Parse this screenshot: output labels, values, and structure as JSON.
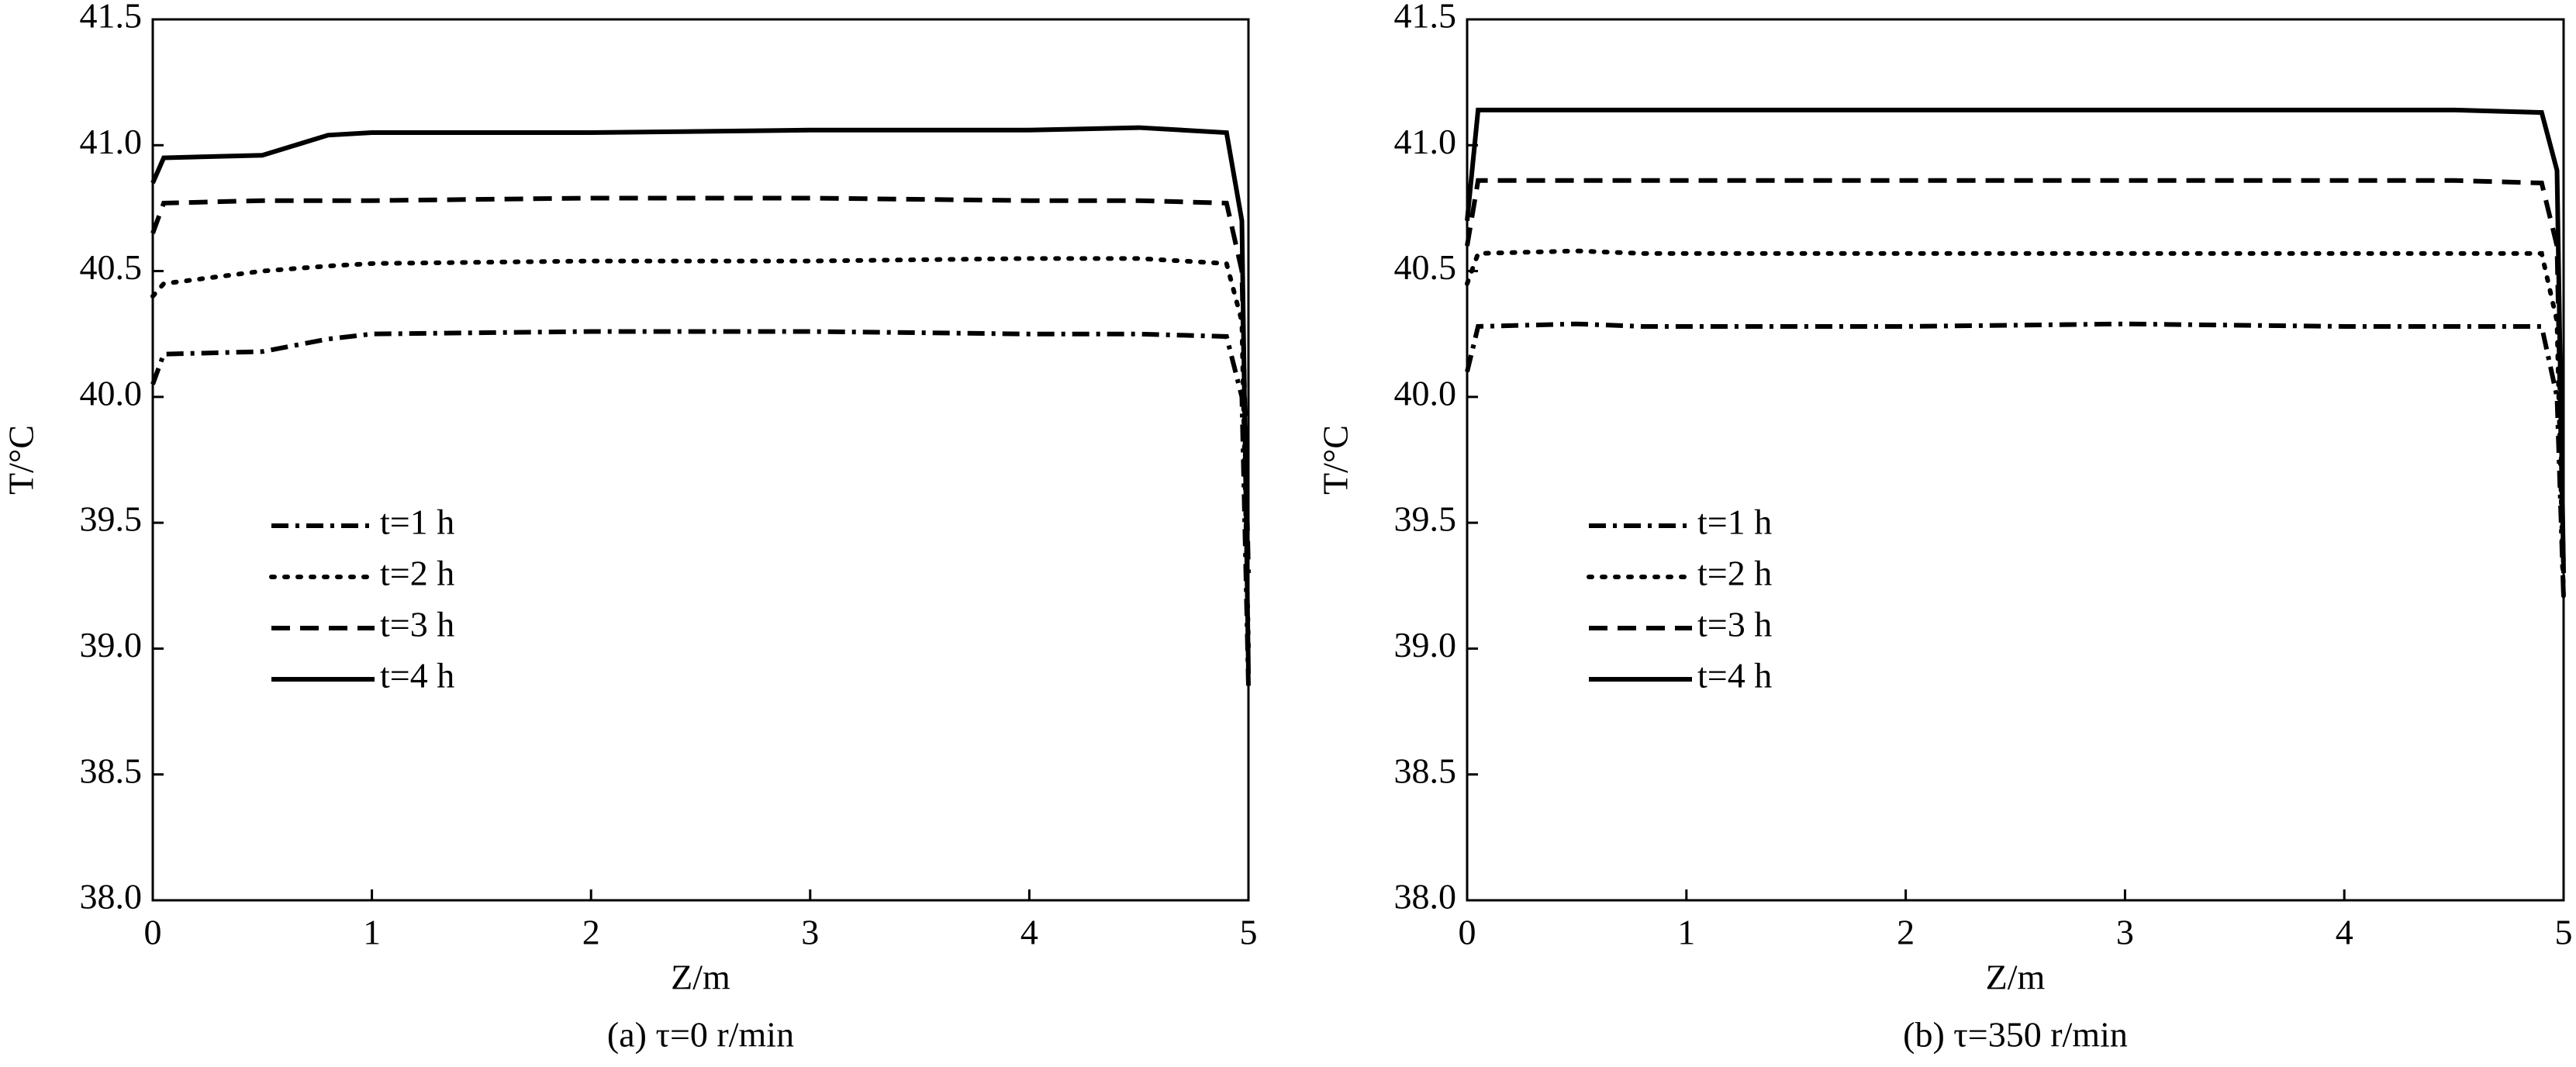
{
  "chart_data": [
    {
      "type": "line",
      "title": "(a) τ=0 r/min",
      "xlabel": "Z/m",
      "ylabel": "T/°C",
      "x": [
        0,
        0.05,
        0.5,
        0.8,
        1,
        2,
        3,
        4,
        4.5,
        4.9,
        4.97,
        5
      ],
      "series": [
        {
          "name": "t=1 h",
          "color": "#000000",
          "style": "dashdot",
          "values": [
            40.05,
            40.17,
            40.18,
            40.23,
            40.25,
            40.26,
            40.26,
            40.25,
            40.25,
            40.24,
            40.0,
            38.85
          ]
        },
        {
          "name": "t=2 h",
          "color": "#000000",
          "style": "dotted",
          "values": [
            40.4,
            40.45,
            40.5,
            40.52,
            40.53,
            40.54,
            40.54,
            40.55,
            40.55,
            40.53,
            40.3,
            39.0
          ]
        },
        {
          "name": "t=3 h",
          "color": "#000000",
          "style": "dashed",
          "values": [
            40.65,
            40.77,
            40.78,
            40.78,
            40.78,
            40.79,
            40.79,
            40.78,
            40.78,
            40.77,
            40.5,
            39.3
          ]
        },
        {
          "name": "t=4 h",
          "color": "#000000",
          "style": "solid",
          "values": [
            40.85,
            40.95,
            40.96,
            41.04,
            41.05,
            41.05,
            41.06,
            41.06,
            41.07,
            41.05,
            40.7,
            38.9
          ]
        }
      ],
      "xlim": [
        0,
        5
      ],
      "ylim": [
        38,
        41.5
      ],
      "xticks": [
        0,
        1,
        2,
        3,
        4,
        5
      ],
      "yticks": [
        {
          "value": 38,
          "label": "38.0"
        },
        38.5,
        {
          "value": 39,
          "label": "39.0"
        },
        39.5,
        {
          "value": 40,
          "label": "40.0"
        },
        40.5,
        {
          "value": 41,
          "label": "41.0"
        },
        41.5
      ]
    },
    {
      "type": "line",
      "title": "(b) τ=350 r/min",
      "xlabel": "Z/m",
      "ylabel": "T/°C",
      "x": [
        0,
        0.05,
        0.5,
        0.8,
        1,
        2,
        3,
        4,
        4.5,
        4.9,
        4.97,
        5
      ],
      "series": [
        {
          "name": "t=1 h",
          "color": "#000000",
          "style": "dashdot",
          "values": [
            40.1,
            40.28,
            40.29,
            40.28,
            40.28,
            40.28,
            40.29,
            40.28,
            40.28,
            40.28,
            40.0,
            39.2
          ]
        },
        {
          "name": "t=2 h",
          "color": "#000000",
          "style": "dotted",
          "values": [
            40.45,
            40.57,
            40.58,
            40.57,
            40.57,
            40.57,
            40.57,
            40.57,
            40.57,
            40.57,
            40.3,
            39.2
          ]
        },
        {
          "name": "t=3 h",
          "color": "#000000",
          "style": "dashed",
          "values": [
            40.6,
            40.86,
            40.86,
            40.86,
            40.86,
            40.86,
            40.86,
            40.86,
            40.86,
            40.85,
            40.6,
            39.3
          ]
        },
        {
          "name": "t=4 h",
          "color": "#000000",
          "style": "solid",
          "values": [
            40.7,
            41.14,
            41.14,
            41.14,
            41.14,
            41.14,
            41.14,
            41.14,
            41.14,
            41.13,
            40.9,
            39.3
          ]
        }
      ],
      "xlim": [
        0,
        5
      ],
      "ylim": [
        38,
        41.5
      ],
      "xticks": [
        0,
        1,
        2,
        3,
        4,
        5
      ],
      "yticks": [
        {
          "value": 38,
          "label": "38.0"
        },
        38.5,
        {
          "value": 39,
          "label": "39.0"
        },
        39.5,
        {
          "value": 40,
          "label": "40.0"
        },
        40.5,
        {
          "value": 41,
          "label": "41.0"
        },
        41.5
      ]
    }
  ]
}
